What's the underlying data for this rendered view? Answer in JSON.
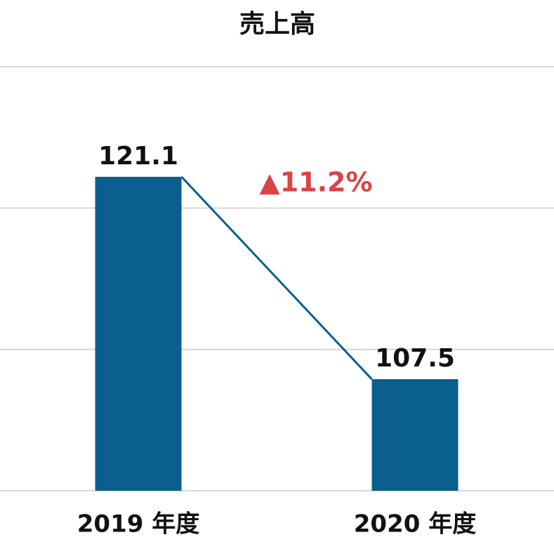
{
  "chart_data": {
    "type": "bar",
    "title": "売上高",
    "categories": [
      "2019 年度",
      "2020 年度"
    ],
    "values": [
      121.1,
      107.5
    ],
    "color": "#0a5f8e",
    "ylim": [
      100,
      128.5
    ],
    "yticks": [
      100,
      109.5,
      119,
      128.5
    ],
    "grid": true,
    "connector": true,
    "annotation": {
      "text": "▲11.2%",
      "color": "#d94448"
    }
  }
}
